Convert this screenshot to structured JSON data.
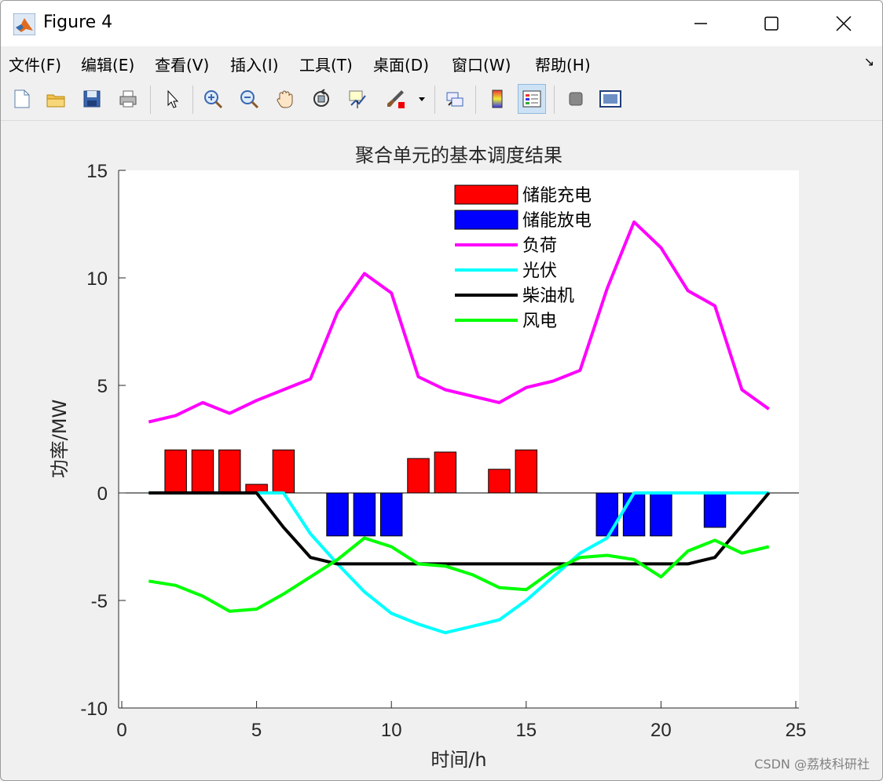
{
  "window": {
    "title": "Figure 4",
    "buttons": {
      "minimize": "minimize",
      "maximize": "maximize",
      "close": "close"
    }
  },
  "menu": [
    "文件(F)",
    "编辑(E)",
    "查看(V)",
    "插入(I)",
    "工具(T)",
    "桌面(D)",
    "窗口(W)",
    "帮助(H)"
  ],
  "toolbar_icons": [
    "new-file-icon",
    "open-folder-icon",
    "save-icon",
    "print-icon",
    "pointer-icon",
    "zoom-in-icon",
    "zoom-out-icon",
    "pan-hand-icon",
    "rotate-3d-icon",
    "data-cursor-icon",
    "brush-icon",
    "brush-dropdown-icon",
    "link-plot-icon",
    "colorbar-icon",
    "legend-icon",
    "hide-plot-tools-icon",
    "show-plot-tools-icon"
  ],
  "watermark": "CSDN @荔枝科研社",
  "chart_data": {
    "type": "bar+line",
    "title": "聚合单元的基本调度结果",
    "xlabel": "时间/h",
    "ylabel": "功率/MW",
    "xlim": [
      0,
      25
    ],
    "ylim": [
      -10,
      15
    ],
    "xticks": [
      "0",
      "5",
      "10",
      "15",
      "20",
      "25"
    ],
    "yticks": [
      "-10",
      "-5",
      "0",
      "5",
      "10",
      "15"
    ],
    "legend_position": "top-center",
    "x": [
      1,
      2,
      3,
      4,
      5,
      6,
      7,
      8,
      9,
      10,
      11,
      12,
      13,
      14,
      15,
      16,
      17,
      18,
      19,
      20,
      21,
      22,
      23,
      24
    ],
    "bars": [
      {
        "name": "储能充电",
        "color": "#ff0000",
        "values": [
          0,
          2,
          2,
          2,
          0.4,
          2,
          0,
          0,
          0,
          0,
          1.6,
          1.9,
          0,
          1.1,
          2,
          0,
          0,
          0,
          0,
          0,
          0,
          0,
          0,
          0
        ]
      },
      {
        "name": "储能放电",
        "color": "#0000ff",
        "values": [
          0,
          0,
          0,
          0,
          0,
          0,
          0,
          -2,
          -2,
          -2,
          0,
          0,
          0,
          0,
          0,
          0,
          0,
          -2,
          -2,
          -2,
          0,
          -1.6,
          0,
          0
        ]
      }
    ],
    "series": [
      {
        "name": "负荷",
        "color": "#ff00ff",
        "values": [
          3.3,
          3.6,
          4.2,
          3.7,
          4.3,
          4.8,
          5.3,
          8.4,
          10.2,
          9.3,
          5.4,
          4.8,
          4.5,
          4.2,
          4.9,
          5.2,
          5.7,
          9.5,
          12.6,
          11.4,
          9.4,
          8.7,
          4.8,
          3.9
        ]
      },
      {
        "name": "光伏",
        "color": "#00ffff",
        "values": [
          0,
          0,
          0,
          0,
          0,
          0,
          -1.9,
          -3.3,
          -4.6,
          -5.6,
          -6.1,
          -6.5,
          -6.2,
          -5.9,
          -5.0,
          -3.9,
          -2.8,
          -2.1,
          0,
          0,
          0,
          0,
          0,
          0
        ]
      },
      {
        "name": "柴油机",
        "color": "#000000",
        "values": [
          0,
          0,
          0,
          0,
          0,
          -1.6,
          -3.0,
          -3.3,
          -3.3,
          -3.3,
          -3.3,
          -3.3,
          -3.3,
          -3.3,
          -3.3,
          -3.3,
          -3.3,
          -3.3,
          -3.3,
          -3.3,
          -3.3,
          -3.0,
          -1.5,
          0
        ]
      },
      {
        "name": "风电",
        "color": "#00ff00",
        "values": [
          -4.1,
          -4.3,
          -4.8,
          -5.5,
          -5.4,
          -4.7,
          -3.9,
          -3.1,
          -2.1,
          -2.5,
          -3.3,
          -3.4,
          -3.8,
          -4.4,
          -4.5,
          -3.6,
          -3.0,
          -2.9,
          -3.1,
          -3.9,
          -2.7,
          -2.2,
          -2.8,
          -2.5
        ]
      }
    ]
  }
}
